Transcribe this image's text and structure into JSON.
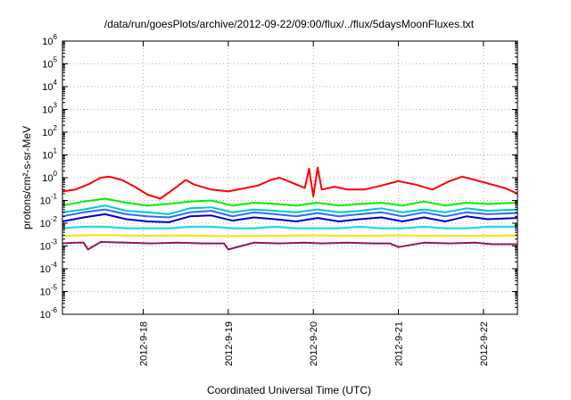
{
  "chart_data": {
    "type": "line",
    "title": "/data/run/goesPlots/archive/2012-09-22/09:00/flux/../flux/5daysMoonFluxes.txt",
    "xlabel": "Coordinated Universal Time (UTC)",
    "ylabel": "protons/cm²-s-sr-MeV",
    "yscale": "log",
    "ylim": [
      1e-06,
      1000000.0
    ],
    "xlim": [
      17.05,
      22.4
    ],
    "grid": true,
    "legend": "none",
    "y_ticks": [
      {
        "value": 1e-06,
        "base": "10",
        "exp": "-6"
      },
      {
        "value": 1e-05,
        "base": "10",
        "exp": "-5"
      },
      {
        "value": 0.0001,
        "base": "10",
        "exp": "-4"
      },
      {
        "value": 0.001,
        "base": "10",
        "exp": "-3"
      },
      {
        "value": 0.01,
        "base": "10",
        "exp": "-2"
      },
      {
        "value": 0.1,
        "base": "10",
        "exp": "-1"
      },
      {
        "value": 1,
        "base": "10",
        "exp": "0"
      },
      {
        "value": 10,
        "base": "10",
        "exp": "1"
      },
      {
        "value": 100,
        "base": "10",
        "exp": "2"
      },
      {
        "value": 1000,
        "base": "10",
        "exp": "3"
      },
      {
        "value": 10000,
        "base": "10",
        "exp": "4"
      },
      {
        "value": 100000,
        "base": "10",
        "exp": "5"
      },
      {
        "value": 1000000,
        "base": "10",
        "exp": "6"
      }
    ],
    "x_ticks": [
      {
        "value": 18,
        "label": "2012-9-18"
      },
      {
        "value": 19,
        "label": "2012-9-19"
      },
      {
        "value": 20,
        "label": "2012-9-20"
      },
      {
        "value": 21,
        "label": "2012-9-21"
      },
      {
        "value": 22,
        "label": "2012-9-22"
      }
    ],
    "series": [
      {
        "color": "#ff0000",
        "x": [
          17.05,
          17.2,
          17.35,
          17.5,
          17.6,
          17.75,
          17.9,
          18.05,
          18.2,
          18.35,
          18.5,
          18.6,
          18.8,
          19.0,
          19.2,
          19.35,
          19.5,
          19.6,
          19.75,
          19.9,
          19.95,
          20.0,
          20.05,
          20.1,
          20.25,
          20.4,
          20.6,
          20.8,
          21.0,
          21.2,
          21.4,
          21.6,
          21.75,
          21.9,
          22.1,
          22.25,
          22.4
        ],
        "y": [
          0.25,
          0.3,
          0.5,
          1.0,
          1.1,
          0.8,
          0.4,
          0.18,
          0.12,
          0.3,
          0.8,
          0.5,
          0.3,
          0.25,
          0.35,
          0.45,
          0.8,
          1.0,
          0.6,
          0.35,
          2.5,
          0.15,
          2.8,
          0.3,
          0.4,
          0.3,
          0.3,
          0.45,
          0.7,
          0.5,
          0.3,
          0.7,
          1.1,
          0.8,
          0.5,
          0.35,
          0.2
        ]
      },
      {
        "color": "#00ee00",
        "x": [
          17.05,
          17.3,
          17.55,
          17.8,
          18.05,
          18.3,
          18.55,
          18.8,
          19.05,
          19.3,
          19.55,
          19.8,
          20.05,
          20.3,
          20.55,
          20.8,
          21.05,
          21.3,
          21.55,
          21.8,
          22.05,
          22.4
        ],
        "y": [
          0.06,
          0.09,
          0.12,
          0.08,
          0.06,
          0.07,
          0.09,
          0.1,
          0.06,
          0.08,
          0.07,
          0.06,
          0.08,
          0.06,
          0.07,
          0.08,
          0.06,
          0.09,
          0.06,
          0.08,
          0.07,
          0.08
        ]
      },
      {
        "color": "#00c8c8",
        "x": [
          17.05,
          17.3,
          17.55,
          17.8,
          18.05,
          18.3,
          18.55,
          18.8,
          19.05,
          19.3,
          19.55,
          19.8,
          20.05,
          20.3,
          20.55,
          20.8,
          21.05,
          21.3,
          21.55,
          21.8,
          22.05,
          22.4
        ],
        "y": [
          0.03,
          0.04,
          0.06,
          0.035,
          0.03,
          0.025,
          0.045,
          0.05,
          0.03,
          0.04,
          0.035,
          0.03,
          0.04,
          0.03,
          0.035,
          0.045,
          0.03,
          0.04,
          0.03,
          0.045,
          0.035,
          0.04
        ]
      },
      {
        "color": "#2a6aff",
        "x": [
          17.05,
          17.3,
          17.55,
          17.8,
          18.05,
          18.3,
          18.55,
          18.8,
          19.05,
          19.3,
          19.55,
          19.8,
          20.05,
          20.3,
          20.55,
          20.8,
          21.05,
          21.3,
          21.55,
          21.8,
          22.05,
          22.4
        ],
        "y": [
          0.02,
          0.03,
          0.04,
          0.025,
          0.02,
          0.018,
          0.03,
          0.035,
          0.02,
          0.03,
          0.025,
          0.02,
          0.028,
          0.02,
          0.025,
          0.03,
          0.02,
          0.03,
          0.02,
          0.03,
          0.025,
          0.028
        ]
      },
      {
        "color": "#0000c8",
        "x": [
          17.05,
          17.3,
          17.55,
          17.8,
          18.05,
          18.3,
          18.55,
          18.8,
          19.05,
          19.3,
          19.55,
          19.8,
          20.05,
          20.3,
          20.55,
          20.8,
          21.05,
          21.3,
          21.55,
          21.8,
          22.05,
          22.4
        ],
        "y": [
          0.012,
          0.018,
          0.025,
          0.015,
          0.012,
          0.011,
          0.02,
          0.022,
          0.013,
          0.018,
          0.015,
          0.012,
          0.017,
          0.012,
          0.015,
          0.018,
          0.012,
          0.018,
          0.012,
          0.02,
          0.015,
          0.017
        ]
      },
      {
        "color": "#00dddd",
        "x": [
          17.05,
          17.3,
          17.55,
          17.8,
          18.05,
          18.3,
          18.55,
          18.8,
          19.05,
          19.3,
          19.55,
          19.8,
          20.05,
          20.3,
          20.55,
          20.8,
          21.05,
          21.3,
          21.55,
          21.8,
          22.05,
          22.4
        ],
        "y": [
          0.006,
          0.007,
          0.007,
          0.006,
          0.006,
          0.006,
          0.007,
          0.007,
          0.006,
          0.006,
          0.007,
          0.006,
          0.006,
          0.006,
          0.007,
          0.006,
          0.006,
          0.007,
          0.006,
          0.006,
          0.007,
          0.007
        ]
      },
      {
        "color": "#ffe000",
        "x": [
          17.05,
          17.5,
          18.0,
          18.5,
          19.0,
          19.5,
          20.0,
          20.5,
          21.0,
          21.5,
          22.0,
          22.4
        ],
        "y": [
          0.0028,
          0.003,
          0.0028,
          0.0029,
          0.0027,
          0.0028,
          0.0029,
          0.0028,
          0.0029,
          0.0028,
          0.0028,
          0.0029
        ]
      },
      {
        "color": "#8b1a5a",
        "x": [
          17.05,
          17.2,
          17.3,
          17.35,
          17.5,
          17.8,
          18.1,
          18.4,
          18.7,
          18.95,
          19.0,
          19.3,
          19.6,
          19.9,
          20.1,
          20.4,
          20.7,
          20.9,
          21.0,
          21.3,
          21.6,
          21.9,
          22.1,
          22.4
        ],
        "y": [
          0.0013,
          0.0014,
          0.0014,
          0.0007,
          0.0015,
          0.0014,
          0.0013,
          0.0014,
          0.0013,
          0.0013,
          0.0007,
          0.0014,
          0.0013,
          0.0014,
          0.0013,
          0.0014,
          0.0013,
          0.0013,
          0.0009,
          0.0014,
          0.0013,
          0.0014,
          0.0012,
          0.0012
        ]
      }
    ]
  }
}
